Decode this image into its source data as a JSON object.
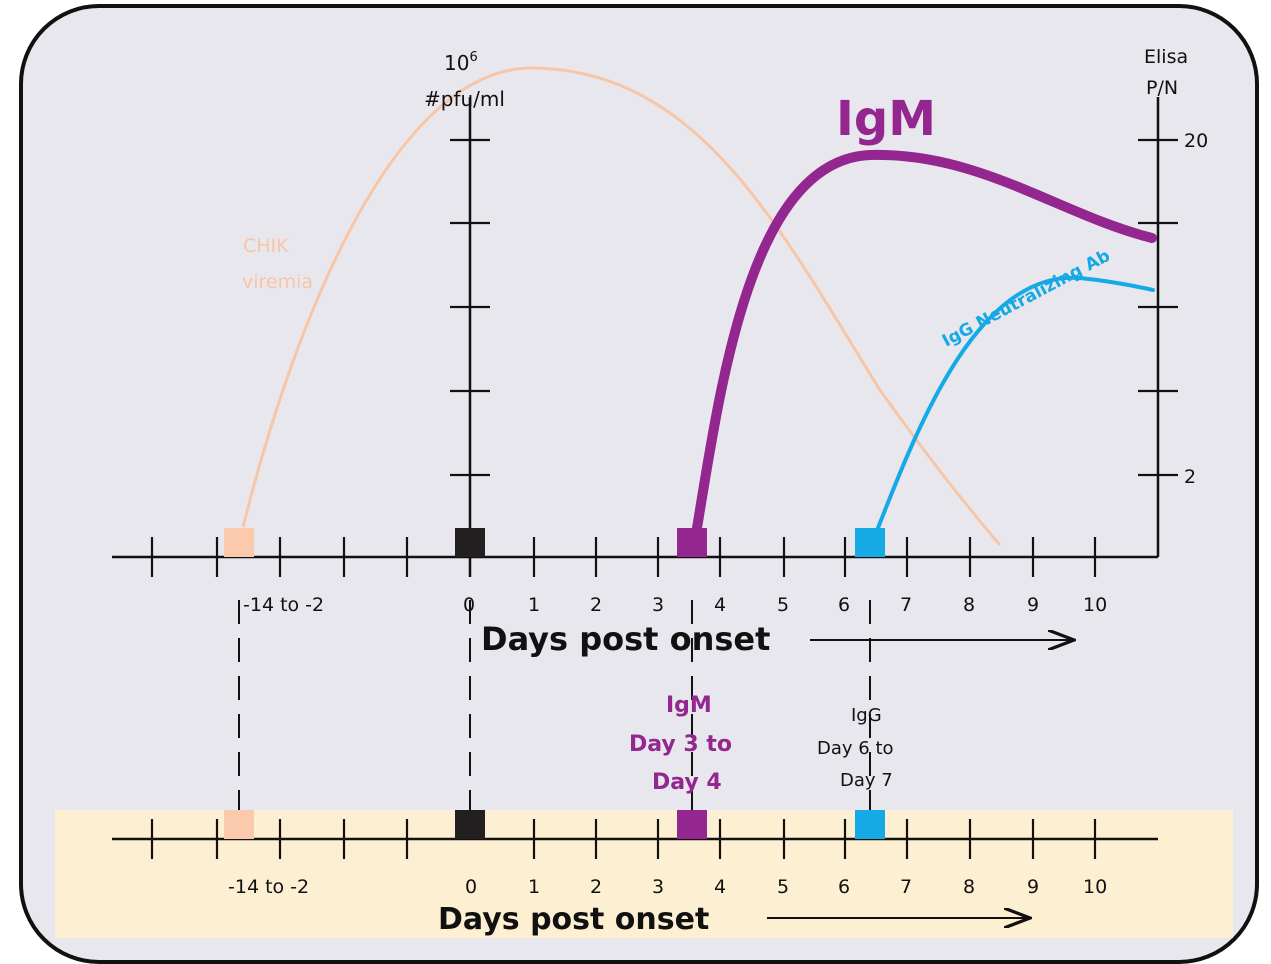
{
  "chart_data": {
    "type": "line",
    "x_axis": {
      "ticks": [
        "-14 to -2",
        "0",
        "1",
        "2",
        "3",
        "4",
        "5",
        "6",
        "7",
        "8",
        "9",
        "10"
      ],
      "label": "Days post onset"
    },
    "left_axis": {
      "unit_top": "10",
      "unit_top_sup": "6",
      "label": "#pfu/ml"
    },
    "right_axis": {
      "label_line1": "Elisa",
      "label_line2": "P/N",
      "ticks": [
        "20",
        "2"
      ]
    },
    "series": [
      {
        "name": "IgM",
        "color": "#93268f"
      },
      {
        "name": "IgG Neutralizing Ab",
        "color": "#15a9e6"
      },
      {
        "name_line1": "CHIK",
        "name_line2": "viremia",
        "color": "#f7c6a7"
      }
    ]
  },
  "timeline": {
    "igm_window": {
      "line1": "IgM",
      "line2": "Day 3 to",
      "line3": "Day 4",
      "color": "#93268f"
    },
    "igg_window": {
      "line1": "IgG",
      "line2": "Day 6 to",
      "line3": "Day 7"
    },
    "band_color": "#fdefd2",
    "axis_label": "Days post onset",
    "ticks": [
      "-14 to -2",
      "0",
      "1",
      "2",
      "3",
      "4",
      "5",
      "6",
      "7",
      "8",
      "9",
      "10"
    ]
  },
  "colors": {
    "viremia_marker": "#fbc9ac",
    "onset_marker": "#231f20",
    "igm": "#93268f",
    "igg": "#15a9e6",
    "background": "#e9e7ee"
  }
}
